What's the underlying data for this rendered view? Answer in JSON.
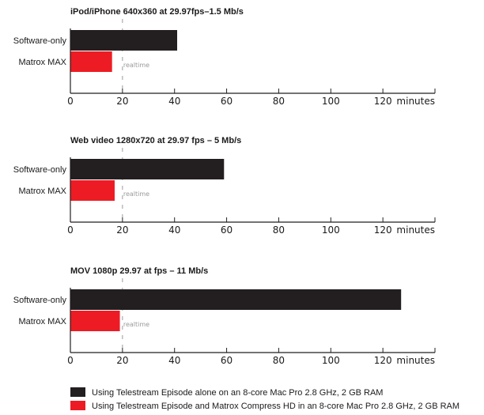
{
  "colors": {
    "software_only": "#231f20",
    "matrox_max": "#ed1c24",
    "axis": "#231f20",
    "realtime_line": "#9a9a9a"
  },
  "legend": [
    {
      "label": "Using Telestream Episode alone on an 8-core Mac Pro 2.8 GHz, 2 GB RAM"
    },
    {
      "label": "Using Telestream Episode and Matrox Compress HD in an 8-core Mac Pro 2.8 GHz, 2 GB RAM"
    }
  ],
  "chart_data": [
    {
      "type": "bar",
      "orientation": "horizontal",
      "title": "iPod/iPhone 640x360 at 29.97fps–1.5 Mb/s",
      "categories": [
        "Software-only",
        "Matrox MAX"
      ],
      "values": [
        41,
        16
      ],
      "xlabel": "minutes",
      "xlim": [
        0,
        140
      ],
      "xticks": [
        0,
        20,
        40,
        60,
        80,
        100,
        120
      ],
      "realtime_label": "realtime",
      "realtime_value": 20
    },
    {
      "type": "bar",
      "orientation": "horizontal",
      "title": "Web video 1280x720 at 29.97 fps – 5 Mb/s",
      "categories": [
        "Software-only",
        "Matrox MAX"
      ],
      "values": [
        59,
        17
      ],
      "xlabel": "minutes",
      "xlim": [
        0,
        140
      ],
      "xticks": [
        0,
        20,
        40,
        60,
        80,
        100,
        120
      ],
      "realtime_label": "realtime",
      "realtime_value": 20
    },
    {
      "type": "bar",
      "orientation": "horizontal",
      "title": "MOV 1080p 29.97 at fps – 11 Mb/s",
      "categories": [
        "Software-only",
        "Matrox MAX"
      ],
      "values": [
        127,
        19
      ],
      "xlabel": "minutes",
      "xlim": [
        0,
        140
      ],
      "xticks": [
        0,
        20,
        40,
        60,
        80,
        100,
        120
      ],
      "realtime_label": "realtime",
      "realtime_value": 20
    }
  ]
}
